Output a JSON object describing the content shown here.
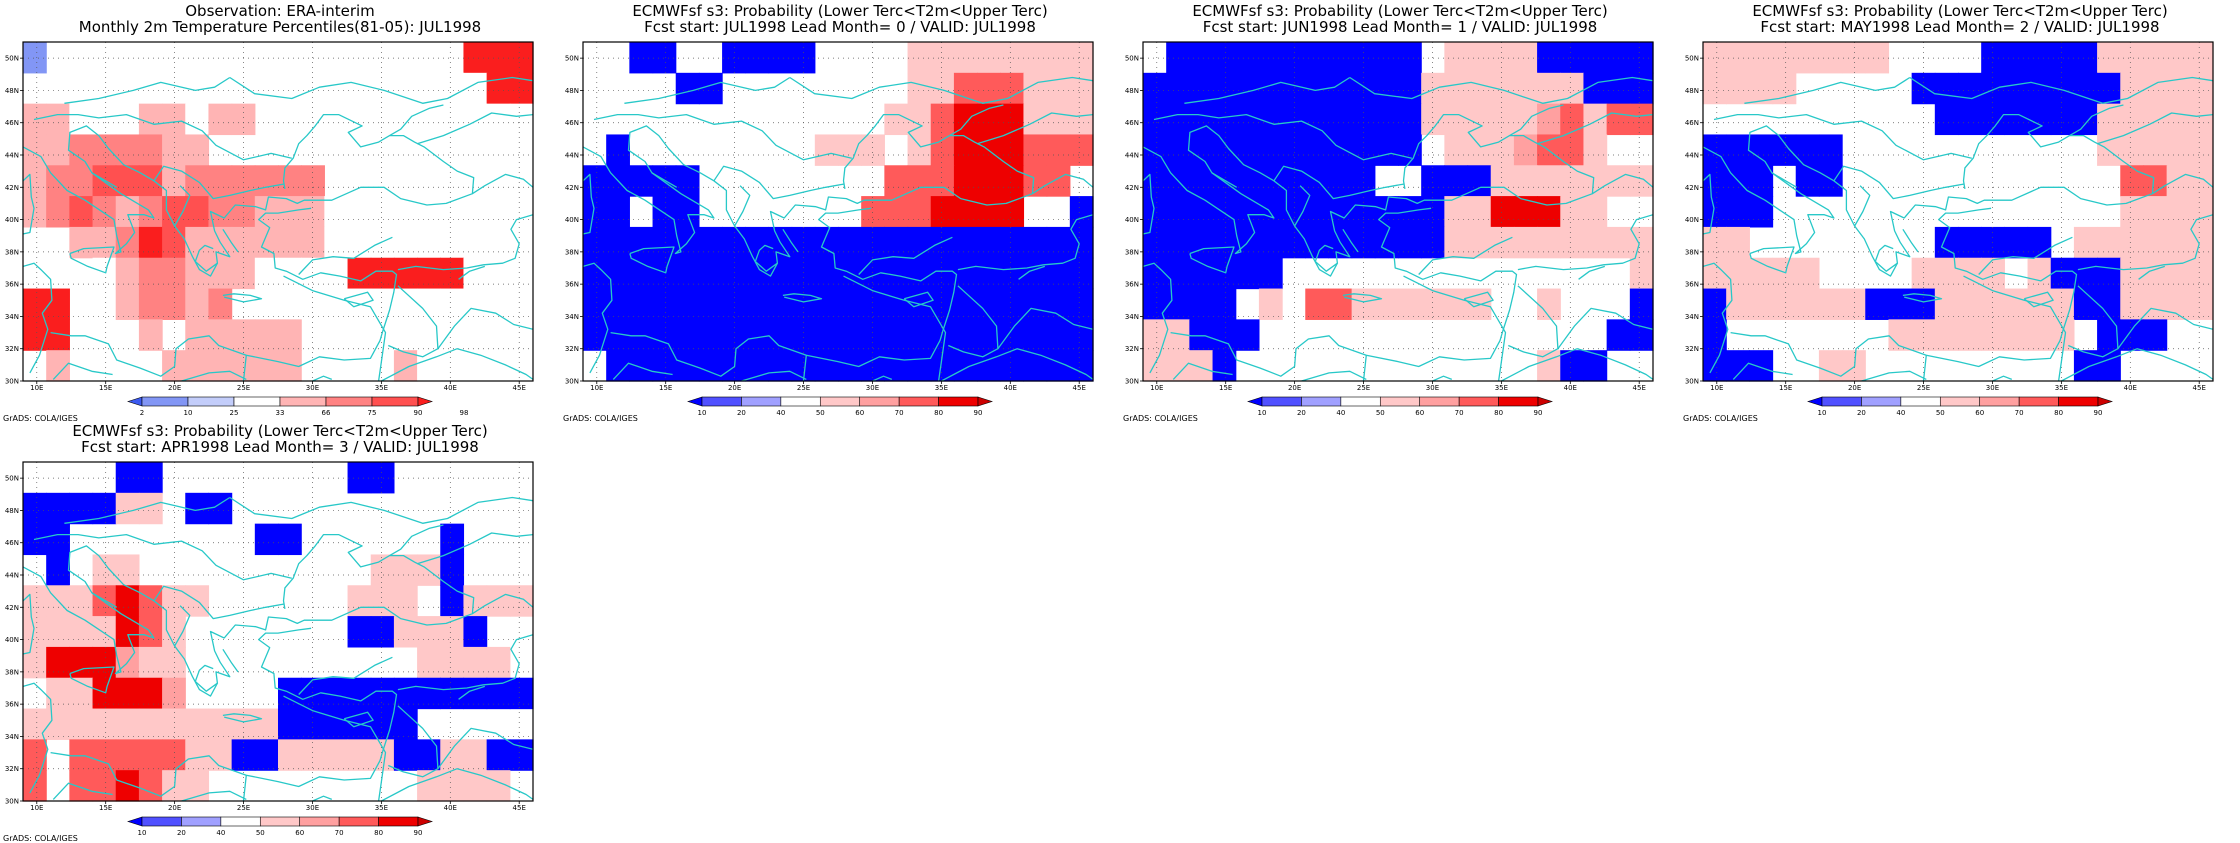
{
  "panels": [
    {
      "title1": "Observation: ERA-interim",
      "title2": "Monthly 2m Temperature Percentiles(81-05): JUL1998",
      "scale": "obs",
      "colorbar": {
        "labels": [
          "2",
          "10",
          "25",
          "33",
          "66",
          "75",
          "90",
          "98"
        ]
      }
    },
    {
      "title1": "ECMWFsf s3: Probability (Lower Terc<T2m<Upper Terc)",
      "title2": "Fcst start: JUL1998   Lead Month= 0 / VALID: JUL1998",
      "scale": "prob",
      "colorbar": {
        "labels": [
          "10",
          "20",
          "40",
          "50",
          "60",
          "70",
          "80",
          "90"
        ]
      }
    },
    {
      "title1": "ECMWFsf s3: Probability (Lower Terc<T2m<Upper Terc)",
      "title2": "Fcst start: JUN1998   Lead Month= 1 / VALID: JUL1998",
      "scale": "prob",
      "colorbar": {
        "labels": [
          "10",
          "20",
          "40",
          "50",
          "60",
          "70",
          "80",
          "90"
        ]
      }
    },
    {
      "title1": "ECMWFsf s3: Probability (Lower Terc<T2m<Upper Terc)",
      "title2": "Fcst start: MAY1998   Lead Month= 2 / VALID: JUL1998",
      "scale": "prob",
      "colorbar": {
        "labels": [
          "10",
          "20",
          "40",
          "50",
          "60",
          "70",
          "80",
          "90"
        ]
      }
    },
    {
      "title1": "ECMWFsf s3: Probability (Lower Terc<T2m<Upper Terc)",
      "title2": "Fcst start: APR1998   Lead Month= 3 / VALID: JUL1998",
      "scale": "prob",
      "colorbar": {
        "labels": [
          "10",
          "20",
          "40",
          "50",
          "60",
          "70",
          "80",
          "90"
        ]
      }
    }
  ],
  "axes": {
    "lon_labels": [
      "10E",
      "15E",
      "20E",
      "25E",
      "30E",
      "35E",
      "40E",
      "45E"
    ],
    "lat_labels": [
      "50N",
      "48N",
      "46N",
      "44N",
      "42N",
      "40N",
      "38N",
      "36N",
      "34N",
      "32N",
      "30N"
    ],
    "lon_range": [
      9,
      46
    ],
    "lat_range": [
      30,
      51
    ]
  },
  "credit": "GrADS: COLA/IGES",
  "colors": {
    "obs": [
      "#3c5af0",
      "#8296f5",
      "#c3cdfa",
      "#ffffff",
      "#ffb4b4",
      "#ff8282",
      "#ff5050",
      "#fa1e1e"
    ],
    "prob": [
      "#0000ff",
      "#5050ff",
      "#a0a0ff",
      "#ffffff",
      "#ffc8c8",
      "#ffa0a0",
      "#ff5a5a",
      "#ee0000",
      "#cc0000"
    ],
    "coast": "#28c8c8"
  },
  "grid_codes": [
    [
      "b00000000000dddddddhhh",
      "000000000000ddddddddhh",
      "eedddeedee0ddddddddddd",
      "eeffffee0000000ddddddd",
      "effgggeffffff00ddddddd",
      "efgfefggffeeedddddddd0",
      "00eefhgeeeeeedddddddd0",
      "0d0deffeeeddddhhhhhdd0",
      "hh00effef00000ddddddd0",
      "hh000e0eeeee00dddddd00",
      "0e0000eeeeee0000eddd00"
    ],
    [
      "00aa00aaaa0000eeeeeeee",
      "0000aa00000000eegggeee",
      "0000000000000eeghhheee",
      "0a00000000eee0eghhhggg",
      "aaaaa00000000ggghhhgg0",
      "aa0aa0000000ggghhhh00a",
      "aaaaaaaaaaaaaaaaaaaaaa",
      "aaaaaaaaaaaaaaaaaaaaaa",
      "aaaaaaaaaaaaaaaaaaaaaa",
      "aaaaaaaaaaaaaaaaaaaaaa",
      "0aaaaaaaaaaaaaaaaaaaaa"
    ],
    [
      "0aaaaaaaaaaa0eeeeaaaaa",
      "aaaaaaaaaaaaeeeeeeeaaa",
      "aaaaaaaaaaaaeeeeefgegg",
      "aaaaaaaaaaaa0eeefgge00",
      "aaaaaaaaaa00aaaeeeeeee",
      "aaaaaaaaaaaaaeehhhee00",
      "aaaaaaaaaaaaaeeeeeeeee",
      "aaaaaa000000000000000e",
      "aaaa0e0ggeeeeee00e000a",
      "eeaaa000000000000000aa",
      "eeea0000000000000eaa00"
    ],
    [
      "eeeeeeee0000aaaaaeeeee",
      "eeee00000aaaaaaaaaeeee",
      "0000000000aaaaaaaeeeee",
      "aaaaaa00000000000eeeee",
      "aaa0aa000000000000ggee",
      "aaa000000000000000eeee",
      "ee00000000aaaaa0eeeeee",
      "eeeee0000eeee0eaaaeeee",
      "aeeeeeeaaaeeeeeeaaeeee",
      "a0000000eeeeeeee0aaa00",
      "aaa00ee000000000aa0000"
    ],
    [
      "0000aa00000000aa000000",
      "aaaaee0aa0000000000000",
      "aa00000000aa000000a000",
      "0a0ee0000000000eeea000",
      "eeeghgee000000eee0aeee",
      "eeeehge0000000aaeeea00",
      "ehhhfee0000000000eeee0",
      "0eehhhf0000aaaaaaaaaaa",
      "eeeeeeeeeeeaaaaaa00000",
      "g0gggggeeaaeeeeeaaeeaa",
      "g0gghgee000000000eeee0"
    ]
  ]
}
